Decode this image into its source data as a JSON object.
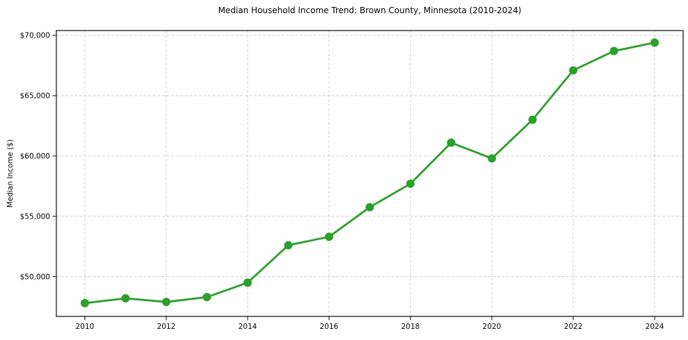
{
  "chart_data": {
    "type": "line",
    "title": "Median Household Income Trend: Brown County, Minnesota (2010-2024)",
    "xlabel": "",
    "ylabel": "Median Income ($)",
    "x": [
      2010,
      2011,
      2012,
      2013,
      2014,
      2015,
      2016,
      2017,
      2018,
      2019,
      2020,
      2021,
      2022,
      2023,
      2024
    ],
    "series": [
      {
        "values": [
          47800,
          48200,
          47900,
          48300,
          49500,
          52600,
          53300,
          55750,
          57700,
          61100,
          59800,
          63000,
          67100,
          68700,
          69400
        ],
        "color": "#2ca02c",
        "marker": "circle"
      }
    ],
    "xlim": [
      2009.3,
      2024.7
    ],
    "ylim": [
      46700,
      70400
    ],
    "xticks": [
      2010,
      2012,
      2014,
      2016,
      2018,
      2020,
      2022,
      2024
    ],
    "xtick_labels": [
      "2010",
      "2012",
      "2014",
      "2016",
      "2018",
      "2020",
      "2022",
      "2024"
    ],
    "yticks": [
      50000,
      55000,
      60000,
      65000,
      70000
    ],
    "ytick_labels": [
      "$50,000",
      "$55,000",
      "$60,000",
      "$65,000",
      "$70,000"
    ],
    "grid": true,
    "grid_style": "dashed",
    "grid_color": "#c9c9c9",
    "spine_color": "#1a1a1a",
    "legend_position": "none"
  }
}
